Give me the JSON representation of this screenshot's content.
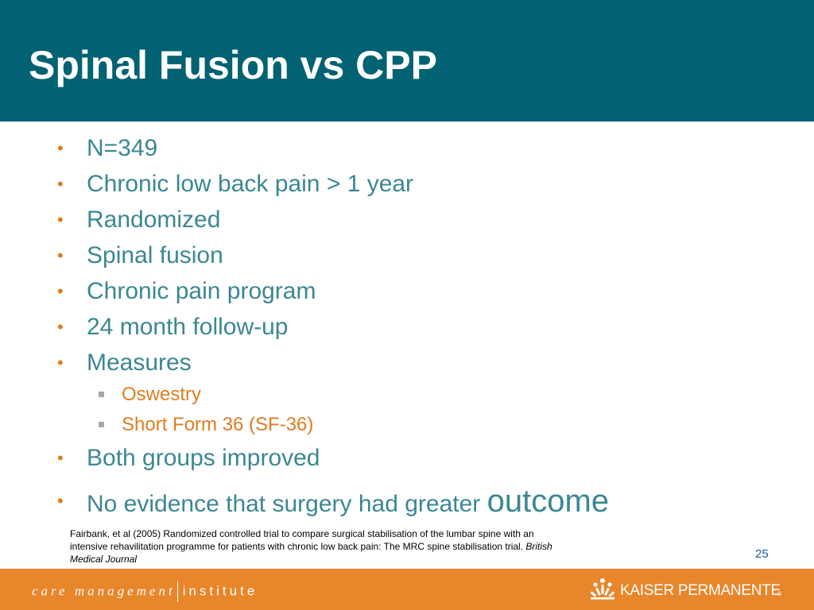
{
  "slide": {
    "title": "Spinal Fusion vs CPP",
    "bullets": [
      {
        "text": "N=349"
      },
      {
        "text": "Chronic low back pain > 1 year"
      },
      {
        "text": "Randomized"
      },
      {
        "text": "Spinal fusion"
      },
      {
        "text": "Chronic pain program"
      },
      {
        "text": "24 month follow-up"
      },
      {
        "text": "Measures",
        "sub": [
          "Oswestry",
          "Short Form 36 (SF-36)"
        ]
      },
      {
        "text": "Both groups improved"
      },
      {
        "text": "No evidence that surgery had greater",
        "emphasis": "outcome"
      }
    ],
    "bullet_glyph": "•",
    "citation": {
      "text": "Fairbank, et al (2005) Randomized controlled trial to compare surgical stabilisation of the lumbar spine with an intensive rehavilitation programme for patients with chronic low back pain: The MRC spine stabilisation trial.",
      "journal": "British Medical Journal"
    },
    "page_number": "25"
  },
  "footer": {
    "left_brand_part1": "care management",
    "left_brand_part2": "institute",
    "right_brand": "KAISER PERMANENTE",
    "right_brand_mark": "®"
  },
  "colors": {
    "header_bg": "#006272",
    "bullet_text": "#3b8794",
    "accent_orange": "#e07c21",
    "footer_bg": "#e8862b"
  }
}
